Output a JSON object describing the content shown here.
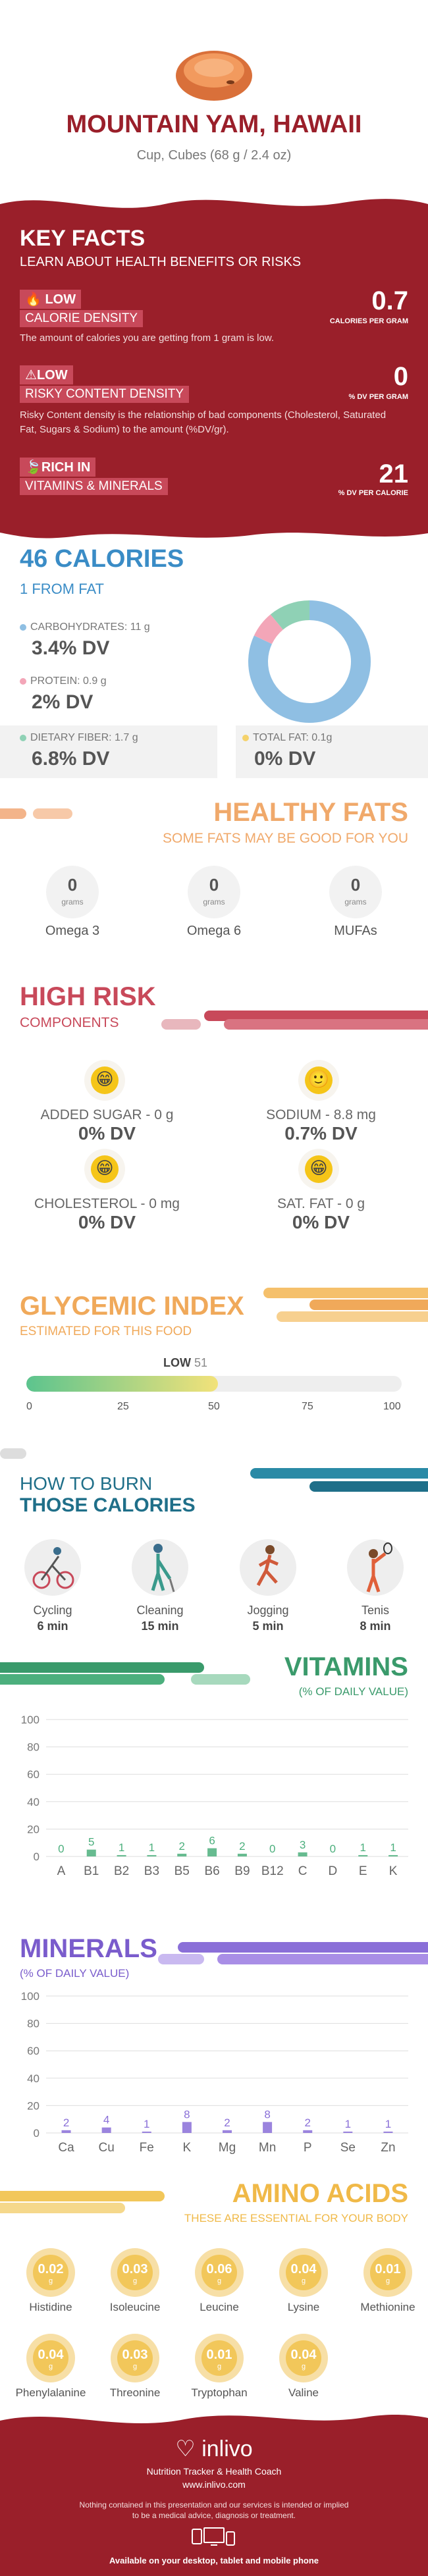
{
  "header": {
    "title": "MOUNTAIN YAM, HAWAII",
    "serving": "Cup, Cubes (68 g / 2.4 oz)"
  },
  "key_facts": {
    "title": "KEY FACTS",
    "subtitle": "LEARN ABOUT HEALTH BENEFITS OR RISKS",
    "calorie_density": {
      "level": "LOW",
      "label": "CALORIE DENSITY",
      "value": "0.7",
      "unit": "CALORIES PER GRAM",
      "description": "The amount of calories you are getting from 1 gram is low."
    },
    "risky_content": {
      "level": "LOW",
      "label": "RISKY CONTENT DENSITY",
      "value": "0",
      "unit": "% DV PER GRAM",
      "description": "Risky Content density is the relationship of bad components (Cholesterol, Saturated Fat, Sugars & Sodium) to the amount (%DV/gr)."
    },
    "vitamins_minerals": {
      "level": "RICH",
      "level_suffix": "IN",
      "label": "VITAMINS & MINERALS",
      "value": "21",
      "unit": "% DV PER CALORIE"
    }
  },
  "calories": {
    "title": "46 CALORIES",
    "from_fat": "1 FROM FAT",
    "carbs_label": "CARBOHYDRATES: 11 g",
    "carbs_dv": "3.4% DV",
    "protein_label": "PROTEIN: 0.9 g",
    "protein_dv": "2% DV",
    "fiber_label": "DIETARY FIBER: 1.7 g",
    "fiber_dv": "6.8% DV",
    "fat_label": "TOTAL FAT: 0.1g",
    "fat_dv": "0% DV",
    "colors": {
      "carbs": "#8fbfe3",
      "protein": "#f3a6b8",
      "fiber": "#8fd1b5",
      "fat": "#f5d26b"
    },
    "donut_shares": {
      "carbs": 0.82,
      "protein": 0.07,
      "fiber": 0.11
    }
  },
  "healthy_fats": {
    "title": "HEALTHY FATS",
    "subtitle": "SOME FATS MAY BE GOOD FOR YOU",
    "items": [
      {
        "value": "0",
        "unit": "grams",
        "name": "Omega 3"
      },
      {
        "value": "0",
        "unit": "grams",
        "name": "Omega 6"
      },
      {
        "value": "0",
        "unit": "grams",
        "name": "MUFAs"
      }
    ]
  },
  "high_risk": {
    "title": "HIGH RISK",
    "subtitle": "COMPONENTS",
    "items": [
      {
        "label": "ADDED SUGAR - 0 g",
        "dv": "0% DV",
        "icon": "grin-icon"
      },
      {
        "label": "SODIUM - 8.8 mg",
        "dv": "0.7% DV",
        "icon": "smile-icon"
      },
      {
        "label": "CHOLESTEROL - 0 mg",
        "dv": "0% DV",
        "icon": "grin-icon"
      },
      {
        "label": "SAT. FAT - 0 g",
        "dv": "0% DV",
        "icon": "grin-icon"
      }
    ]
  },
  "glycemic": {
    "title": "GLYCEMIC INDEX",
    "subtitle": "ESTIMATED FOR THIS FOOD",
    "level": "LOW",
    "value": "51",
    "fill_fraction": 0.51,
    "ticks": [
      "0",
      "25",
      "50",
      "75",
      "100"
    ]
  },
  "burn": {
    "title_line1": "HOW TO BURN",
    "title_line2": "THOSE CALORIES",
    "items": [
      {
        "name": "Cycling",
        "time": "6 min",
        "icon": "cycling-icon"
      },
      {
        "name": "Cleaning",
        "time": "15 min",
        "icon": "cleaning-icon"
      },
      {
        "name": "Jogging",
        "time": "5 min",
        "icon": "jogging-icon"
      },
      {
        "name": "Tenis",
        "time": "8 min",
        "icon": "tennis-icon"
      }
    ]
  },
  "vitamins": {
    "title": "VITAMINS",
    "subtitle": "(% OF DAILY VALUE)",
    "color": "#4caf7d",
    "y_ticks": [
      "100",
      "80",
      "60",
      "40",
      "20",
      "0"
    ],
    "categories": [
      "A",
      "B1",
      "B2",
      "B3",
      "B5",
      "B6",
      "B9",
      "B12",
      "C",
      "D",
      "E",
      "K"
    ],
    "values": [
      0,
      5,
      1,
      1,
      2,
      6,
      2,
      0,
      3,
      0,
      1,
      1
    ],
    "ylim": [
      0,
      100
    ]
  },
  "minerals": {
    "title": "MINERALS",
    "subtitle": "(% OF DAILY VALUE)",
    "color": "#8a6fd8",
    "y_ticks": [
      "100",
      "80",
      "60",
      "40",
      "20",
      "0"
    ],
    "categories": [
      "Ca",
      "Cu",
      "Fe",
      "K",
      "Mg",
      "Mn",
      "P",
      "Se",
      "Zn"
    ],
    "values": [
      2,
      4,
      1,
      8,
      2,
      8,
      2,
      1,
      1
    ],
    "ylim": [
      0,
      100
    ]
  },
  "amino": {
    "title": "AMINO ACIDS",
    "subtitle": "THESE ARE ESSENTIAL FOR YOUR BODY",
    "unit": "g",
    "items": [
      {
        "value": "0.02",
        "name": "Histidine"
      },
      {
        "value": "0.03",
        "name": "Isoleucine"
      },
      {
        "value": "0.06",
        "name": "Leucine"
      },
      {
        "value": "0.04",
        "name": "Lysine"
      },
      {
        "value": "0.01",
        "name": "Methionine"
      },
      {
        "value": "0.04",
        "name": "Phenylalanine"
      },
      {
        "value": "0.03",
        "name": "Threonine"
      },
      {
        "value": "0.01",
        "name": "Tryptophan"
      },
      {
        "value": "0.04",
        "name": "Valine"
      }
    ]
  },
  "footer": {
    "brand": "inlivo",
    "tagline": "Nutrition Tracker & Health Coach",
    "url": "www.inlivo.com",
    "disclaimer_line1": "Nothing contained in this presentation and our services is intended or implied",
    "disclaimer_line2": "to be a medical advice, diagnosis or treatment.",
    "available": "Available on your desktop, tablet and mobile phone"
  }
}
